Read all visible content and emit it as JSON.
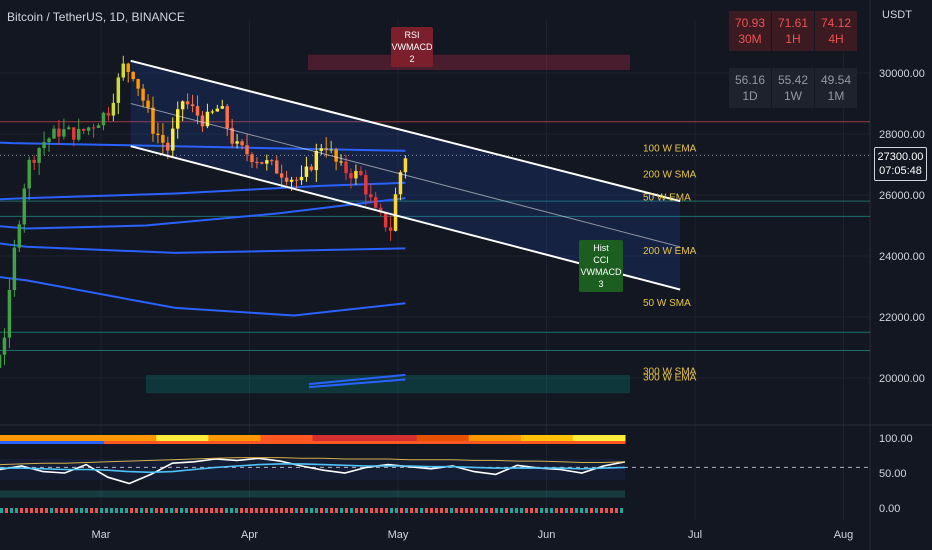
{
  "header": {
    "title": "Bitcoin / TetherUS, 1D, BINANCE",
    "currency": "USDT"
  },
  "rsi_table": [
    {
      "value": "70.93",
      "label": "30M",
      "state": "overbought"
    },
    {
      "value": "71.61",
      "label": "1H",
      "state": "overbought"
    },
    {
      "value": "74.12",
      "label": "4H",
      "state": "overbought"
    },
    {
      "value": "56.16",
      "label": "1D",
      "state": "neutral"
    },
    {
      "value": "55.42",
      "label": "1W",
      "state": "neutral"
    },
    {
      "value": "49.54",
      "label": "1M",
      "state": "neutral"
    }
  ],
  "signals": {
    "bearish": {
      "lines": [
        "RSI",
        "VWMACD",
        "2"
      ]
    },
    "bullish": {
      "lines": [
        "Hist",
        "CCI",
        "VWMACD",
        "3"
      ]
    }
  },
  "current_price": {
    "value": "27300.00",
    "countdown": "07:05:48"
  },
  "colors": {
    "background": "#131722",
    "ma_line": "#2962ff",
    "ma_label": "#e8c547",
    "bull": "#26a69a",
    "bear": "#ef5350",
    "channel": "#ffffff"
  },
  "chart_data": [
    {
      "type": "candlestick",
      "symbol": "Bitcoin / TetherUS",
      "timeframe": "1D",
      "exchange": "BINANCE",
      "ylim": [
        19000,
        31700
      ],
      "yticks": [
        "30000.00",
        "28000.00",
        "26000.00",
        "24000.00",
        "22000.00",
        "20000.00"
      ],
      "xticks": [
        "Mar",
        "Apr",
        "May",
        "Jun",
        "Jul",
        "Aug"
      ],
      "x_range_months": [
        1.5,
        8.4
      ],
      "close_path": [
        {
          "t": 1.55,
          "v": 23200
        },
        {
          "t": 1.62,
          "v": 22400
        },
        {
          "t": 1.7,
          "v": 23600
        },
        {
          "t": 1.8,
          "v": 24100
        },
        {
          "t": 1.88,
          "v": 23800
        },
        {
          "t": 2.0,
          "v": 23400
        },
        {
          "t": 2.1,
          "v": 22700
        },
        {
          "t": 2.2,
          "v": 21900
        },
        {
          "t": 2.28,
          "v": 20300
        },
        {
          "t": 2.36,
          "v": 21600
        },
        {
          "t": 2.42,
          "v": 24300
        },
        {
          "t": 2.5,
          "v": 26900
        },
        {
          "t": 2.6,
          "v": 27700
        },
        {
          "t": 2.72,
          "v": 28100
        },
        {
          "t": 2.85,
          "v": 28000
        },
        {
          "t": 2.97,
          "v": 28400
        },
        {
          "t": 3.05,
          "v": 28800
        },
        {
          "t": 3.15,
          "v": 30200
        },
        {
          "t": 3.22,
          "v": 30000
        },
        {
          "t": 3.35,
          "v": 28200
        },
        {
          "t": 3.45,
          "v": 27500
        },
        {
          "t": 3.55,
          "v": 29100
        },
        {
          "t": 3.7,
          "v": 28400
        },
        {
          "t": 3.8,
          "v": 28900
        },
        {
          "t": 3.9,
          "v": 27600
        },
        {
          "t": 4.05,
          "v": 27200
        },
        {
          "t": 4.2,
          "v": 26800
        },
        {
          "t": 4.35,
          "v": 26400
        },
        {
          "t": 4.5,
          "v": 27800
        },
        {
          "t": 4.6,
          "v": 26900
        },
        {
          "t": 4.75,
          "v": 26600
        },
        {
          "t": 4.85,
          "v": 25400
        },
        {
          "t": 4.95,
          "v": 24900
        },
        {
          "t": 5.0,
          "v": 26500
        },
        {
          "t": 5.05,
          "v": 27300
        }
      ],
      "moving_averages": [
        {
          "name": "100 W EMA",
          "label_value": 27550,
          "points": [
            {
              "t": 1.5,
              "v": 27900
            },
            {
              "t": 2.4,
              "v": 27700
            },
            {
              "t": 3.5,
              "v": 27600
            },
            {
              "t": 4.5,
              "v": 27500
            },
            {
              "t": 5.05,
              "v": 27450
            }
          ]
        },
        {
          "name": "200 W SMA",
          "label_value": 26700,
          "points": [
            {
              "t": 1.5,
              "v": 25700
            },
            {
              "t": 2.5,
              "v": 25900
            },
            {
              "t": 3.5,
              "v": 26050
            },
            {
              "t": 4.5,
              "v": 26300
            },
            {
              "t": 5.05,
              "v": 26400
            }
          ]
        },
        {
          "name": "50 W EMA",
          "label_value": 25950,
          "points": [
            {
              "t": 1.5,
              "v": 25300
            },
            {
              "t": 2.5,
              "v": 24900
            },
            {
              "t": 3.3,
              "v": 25000
            },
            {
              "t": 4.2,
              "v": 25400
            },
            {
              "t": 5.05,
              "v": 25900
            }
          ]
        },
        {
          "name": "200 W EMA",
          "label_value": 24200,
          "points": [
            {
              "t": 1.5,
              "v": 24900
            },
            {
              "t": 2.5,
              "v": 24300
            },
            {
              "t": 3.5,
              "v": 24100
            },
            {
              "t": 5.05,
              "v": 24250
            }
          ]
        },
        {
          "name": "50 W SMA",
          "label_value": 22500,
          "points": [
            {
              "t": 1.5,
              "v": 23800
            },
            {
              "t": 2.5,
              "v": 23200
            },
            {
              "t": 3.5,
              "v": 22300
            },
            {
              "t": 4.3,
              "v": 22050
            },
            {
              "t": 5.05,
              "v": 22450
            }
          ]
        },
        {
          "name": "300 W SMA",
          "label_value": 20250,
          "points": [
            {
              "t": 4.4,
              "v": 19800
            },
            {
              "t": 5.05,
              "v": 20100
            }
          ]
        },
        {
          "name": "300 W EMA",
          "label_value": 20050,
          "points": [
            {
              "t": 4.4,
              "v": 19700
            },
            {
              "t": 5.05,
              "v": 19950
            }
          ]
        }
      ],
      "channel": {
        "upper": [
          {
            "t": 3.2,
            "v": 30400
          },
          {
            "t": 6.9,
            "v": 25800
          }
        ],
        "lower": [
          {
            "t": 3.2,
            "v": 27600
          },
          {
            "t": 6.9,
            "v": 22900
          }
        ],
        "mid": [
          {
            "t": 3.2,
            "v": 29000
          },
          {
            "t": 6.9,
            "v": 24300
          }
        ]
      },
      "zones": [
        {
          "kind": "supply",
          "from": 30100,
          "to": 30600
        },
        {
          "kind": "demand",
          "from": 19500,
          "to": 20100
        }
      ],
      "current_price": 27300
    },
    {
      "type": "line",
      "name": "oscillator",
      "ylim": [
        0,
        100
      ],
      "yticks": [
        "100.00",
        "50.00",
        "0.00"
      ],
      "reference_line": 58,
      "series": [
        {
          "values": [
            55,
            60,
            52,
            50,
            62,
            44,
            35,
            48,
            64,
            66,
            70,
            68,
            71,
            67,
            60,
            54,
            50,
            58,
            62,
            59,
            56,
            60,
            52,
            48,
            61,
            57,
            55,
            50,
            60,
            66
          ]
        },
        {
          "values": [
            57,
            57,
            56,
            55,
            55,
            54,
            52,
            51,
            52,
            55,
            58,
            60,
            62,
            63,
            63,
            62,
            61,
            60,
            60,
            60,
            59,
            59,
            58,
            57,
            57,
            57,
            57,
            56,
            57,
            58
          ]
        },
        {
          "values": [
            62,
            63,
            64,
            64,
            65,
            66,
            67,
            68,
            69,
            70,
            71,
            72,
            72,
            72,
            71,
            71,
            70,
            70,
            70,
            69,
            69,
            69,
            68,
            68,
            67,
            67,
            66,
            65,
            65,
            66
          ]
        }
      ]
    }
  ]
}
